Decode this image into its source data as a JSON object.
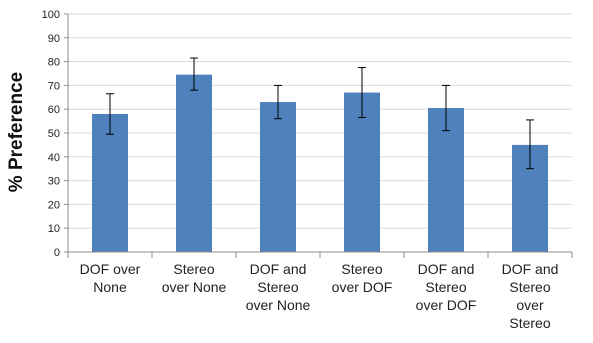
{
  "chart_data": {
    "type": "bar",
    "title": "",
    "xlabel": "",
    "ylabel": "% Preference",
    "ylim": [
      0,
      100
    ],
    "ytick_step": 10,
    "grid": true,
    "legend": "none",
    "bar_color": "#4f81bd",
    "categories": [
      [
        "DOF over",
        "None"
      ],
      [
        "Stereo",
        "over None"
      ],
      [
        "DOF and",
        "Stereo",
        "over None"
      ],
      [
        "Stereo",
        "over DOF"
      ],
      [
        "DOF and",
        "Stereo",
        "over DOF"
      ],
      [
        "DOF and",
        "Stereo",
        "over",
        "Stereo"
      ]
    ],
    "values": [
      58,
      74.5,
      63,
      67,
      60.5,
      45
    ],
    "error_low": [
      49.5,
      68,
      56,
      56.5,
      51,
      35
    ],
    "error_high": [
      66.5,
      81.5,
      70,
      77.5,
      70,
      55.5
    ]
  }
}
